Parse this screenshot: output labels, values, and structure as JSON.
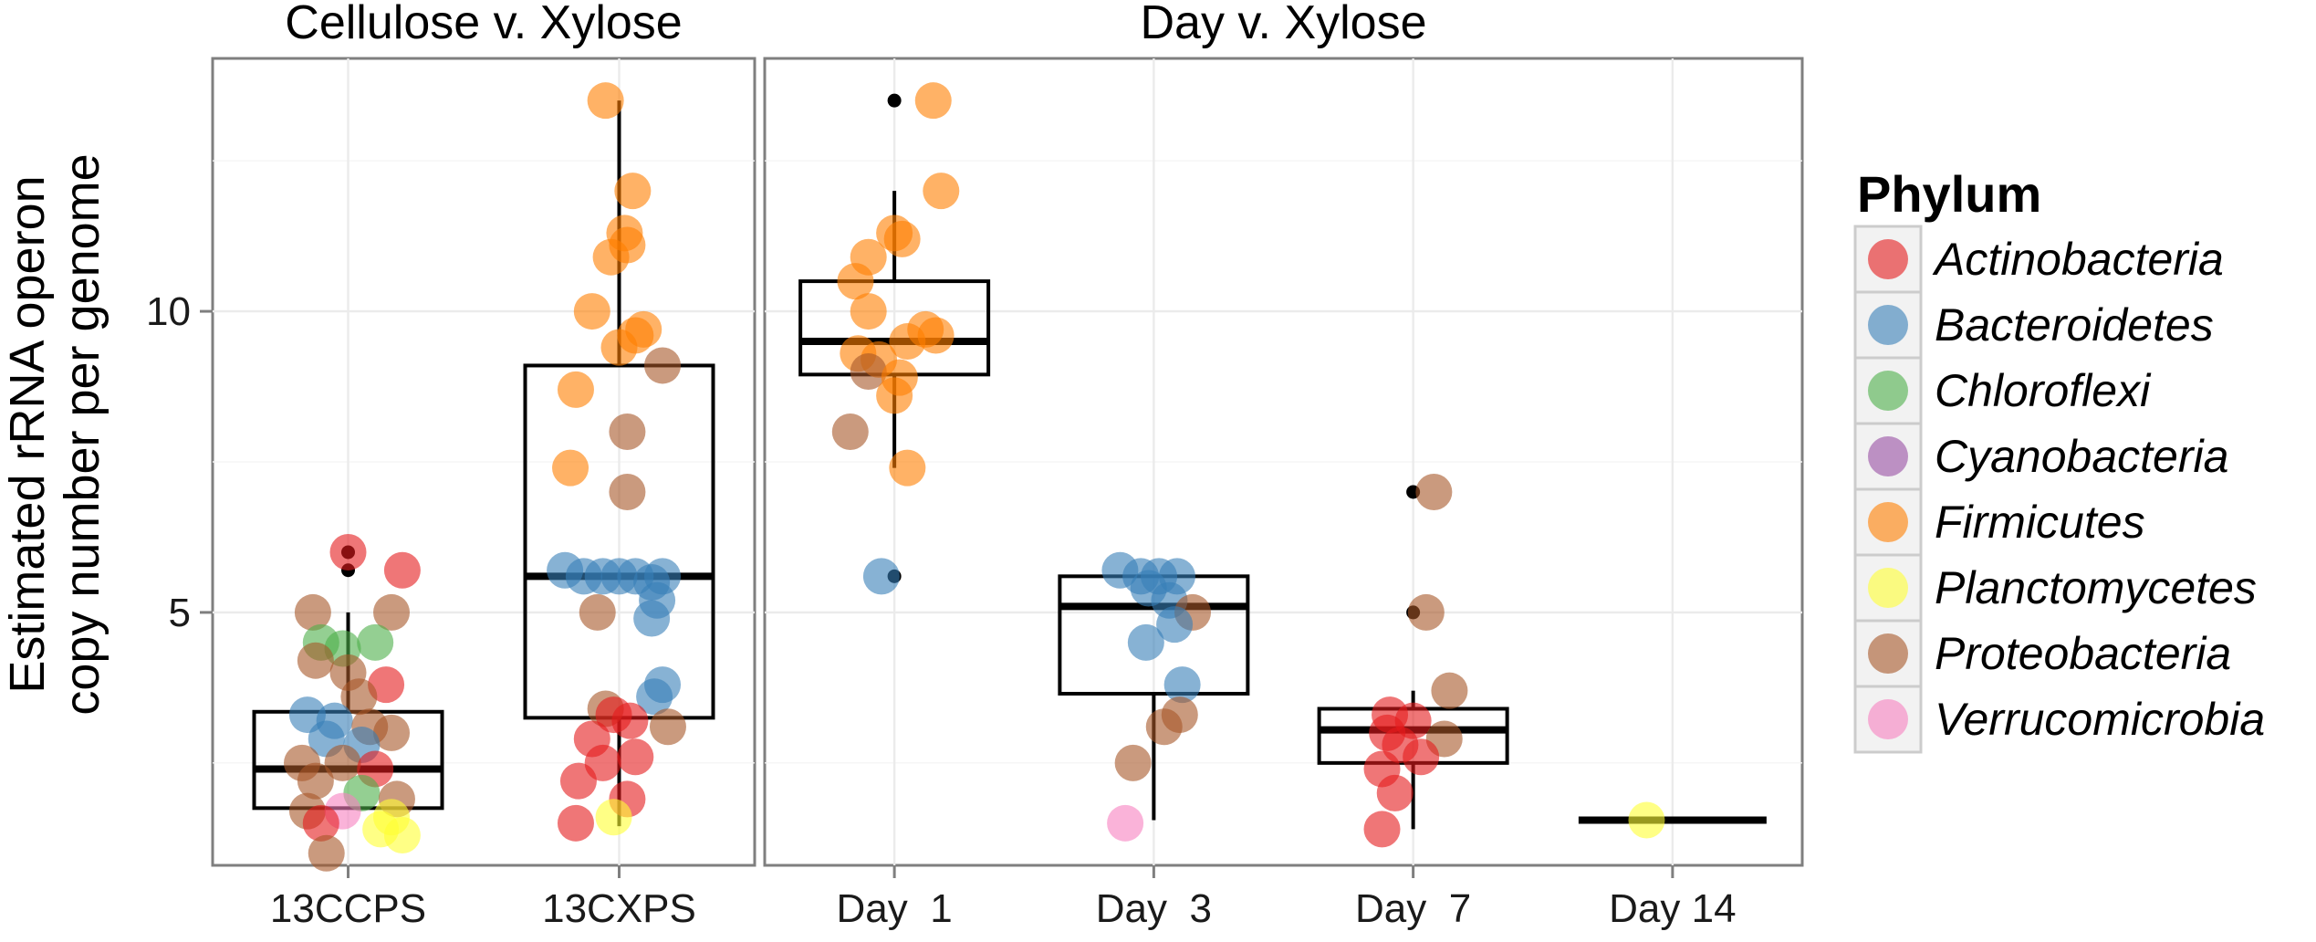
{
  "chart_data": {
    "type": "scatter",
    "subtype": "boxplot with jittered points, faceted",
    "ylabel": [
      "Estimated rRNA operon",
      "copy number per genome"
    ],
    "xlabel": "",
    "ylim": [
      0.8,
      14.2
    ],
    "yticks": [
      5,
      10
    ],
    "grid": true,
    "legend": {
      "title": "Phylum",
      "placement": "right",
      "entries": [
        {
          "name": "Actinobacteria",
          "color": "#e41a1c"
        },
        {
          "name": "Bacteroidetes",
          "color": "#377eb8"
        },
        {
          "name": "Chloroflexi",
          "color": "#4daf4a"
        },
        {
          "name": "Cyanobacteria",
          "color": "#984ea3"
        },
        {
          "name": "Firmicutes",
          "color": "#ff7f00"
        },
        {
          "name": "Planctomycetes",
          "color": "#ffff33"
        },
        {
          "name": "Proteobacteria",
          "color": "#a65628"
        },
        {
          "name": "Verrucomicrobia",
          "color": "#f781bf"
        }
      ]
    },
    "panels": [
      {
        "title": "Cellulose v. Xylose",
        "categories": [
          "13CCPS",
          "13CXPS"
        ],
        "boxes": [
          {
            "category": "13CCPS",
            "q1": 1.75,
            "median": 2.4,
            "q3": 3.35,
            "whisker_low": 1.75,
            "whisker_high": 5.0
          },
          {
            "category": "13CXPS",
            "q1": 3.25,
            "median": 5.6,
            "q3": 9.1,
            "whisker_low": 1.45,
            "whisker_high": 13.5
          }
        ],
        "outliers": [
          {
            "category": "13CCPS",
            "y": 6.0
          },
          {
            "category": "13CCPS",
            "y": 5.7
          }
        ],
        "points": [
          {
            "category": "13CCPS",
            "dx": 0.0,
            "y": 6.0,
            "phylum": "Actinobacteria"
          },
          {
            "category": "13CCPS",
            "dx": 0.2,
            "y": 5.7,
            "phylum": "Actinobacteria"
          },
          {
            "category": "13CCPS",
            "dx": -0.13,
            "y": 5.0,
            "phylum": "Proteobacteria"
          },
          {
            "category": "13CCPS",
            "dx": 0.16,
            "y": 5.0,
            "phylum": "Proteobacteria"
          },
          {
            "category": "13CCPS",
            "dx": -0.1,
            "y": 4.5,
            "phylum": "Chloroflexi"
          },
          {
            "category": "13CCPS",
            "dx": 0.1,
            "y": 4.5,
            "phylum": "Chloroflexi"
          },
          {
            "category": "13CCPS",
            "dx": -0.02,
            "y": 4.4,
            "phylum": "Chloroflexi"
          },
          {
            "category": "13CCPS",
            "dx": -0.12,
            "y": 4.2,
            "phylum": "Proteobacteria"
          },
          {
            "category": "13CCPS",
            "dx": 0.0,
            "y": 4.0,
            "phylum": "Proteobacteria"
          },
          {
            "category": "13CCPS",
            "dx": 0.14,
            "y": 3.8,
            "phylum": "Actinobacteria"
          },
          {
            "category": "13CCPS",
            "dx": 0.04,
            "y": 3.6,
            "phylum": "Proteobacteria"
          },
          {
            "category": "13CCPS",
            "dx": -0.15,
            "y": 3.3,
            "phylum": "Bacteroidetes"
          },
          {
            "category": "13CCPS",
            "dx": -0.05,
            "y": 3.2,
            "phylum": "Bacteroidetes"
          },
          {
            "category": "13CCPS",
            "dx": 0.08,
            "y": 3.1,
            "phylum": "Proteobacteria"
          },
          {
            "category": "13CCPS",
            "dx": 0.16,
            "y": 3.0,
            "phylum": "Proteobacteria"
          },
          {
            "category": "13CCPS",
            "dx": -0.08,
            "y": 2.9,
            "phylum": "Bacteroidetes"
          },
          {
            "category": "13CCPS",
            "dx": 0.05,
            "y": 2.8,
            "phylum": "Bacteroidetes"
          },
          {
            "category": "13CCPS",
            "dx": -0.17,
            "y": 2.5,
            "phylum": "Proteobacteria"
          },
          {
            "category": "13CCPS",
            "dx": -0.02,
            "y": 2.5,
            "phylum": "Proteobacteria"
          },
          {
            "category": "13CCPS",
            "dx": 0.1,
            "y": 2.4,
            "phylum": "Actinobacteria"
          },
          {
            "category": "13CCPS",
            "dx": -0.12,
            "y": 2.2,
            "phylum": "Proteobacteria"
          },
          {
            "category": "13CCPS",
            "dx": 0.05,
            "y": 2.0,
            "phylum": "Chloroflexi"
          },
          {
            "category": "13CCPS",
            "dx": 0.18,
            "y": 1.9,
            "phylum": "Proteobacteria"
          },
          {
            "category": "13CCPS",
            "dx": -0.15,
            "y": 1.7,
            "phylum": "Proteobacteria"
          },
          {
            "category": "13CCPS",
            "dx": -0.02,
            "y": 1.7,
            "phylum": "Verrucomicrobia"
          },
          {
            "category": "13CCPS",
            "dx": 0.16,
            "y": 1.6,
            "phylum": "Planctomycetes"
          },
          {
            "category": "13CCPS",
            "dx": -0.1,
            "y": 1.5,
            "phylum": "Actinobacteria"
          },
          {
            "category": "13CCPS",
            "dx": 0.12,
            "y": 1.4,
            "phylum": "Planctomycetes"
          },
          {
            "category": "13CCPS",
            "dx": 0.2,
            "y": 1.3,
            "phylum": "Planctomycetes"
          },
          {
            "category": "13CCPS",
            "dx": -0.08,
            "y": 1.0,
            "phylum": "Proteobacteria"
          },
          {
            "category": "13CXPS",
            "dx": -0.05,
            "y": 13.5,
            "phylum": "Firmicutes"
          },
          {
            "category": "13CXPS",
            "dx": 0.05,
            "y": 12.0,
            "phylum": "Firmicutes"
          },
          {
            "category": "13CXPS",
            "dx": 0.02,
            "y": 11.3,
            "phylum": "Firmicutes"
          },
          {
            "category": "13CXPS",
            "dx": 0.03,
            "y": 11.1,
            "phylum": "Firmicutes"
          },
          {
            "category": "13CXPS",
            "dx": -0.03,
            "y": 10.9,
            "phylum": "Firmicutes"
          },
          {
            "category": "13CXPS",
            "dx": -0.1,
            "y": 10.0,
            "phylum": "Firmicutes"
          },
          {
            "category": "13CXPS",
            "dx": 0.09,
            "y": 9.7,
            "phylum": "Firmicutes"
          },
          {
            "category": "13CXPS",
            "dx": 0.06,
            "y": 9.6,
            "phylum": "Firmicutes"
          },
          {
            "category": "13CXPS",
            "dx": 0.0,
            "y": 9.4,
            "phylum": "Firmicutes"
          },
          {
            "category": "13CXPS",
            "dx": 0.16,
            "y": 9.1,
            "phylum": "Proteobacteria"
          },
          {
            "category": "13CXPS",
            "dx": -0.16,
            "y": 8.7,
            "phylum": "Firmicutes"
          },
          {
            "category": "13CXPS",
            "dx": 0.03,
            "y": 8.0,
            "phylum": "Proteobacteria"
          },
          {
            "category": "13CXPS",
            "dx": -0.18,
            "y": 7.4,
            "phylum": "Firmicutes"
          },
          {
            "category": "13CXPS",
            "dx": 0.03,
            "y": 7.0,
            "phylum": "Proteobacteria"
          },
          {
            "category": "13CXPS",
            "dx": -0.2,
            "y": 5.7,
            "phylum": "Bacteroidetes"
          },
          {
            "category": "13CXPS",
            "dx": -0.13,
            "y": 5.6,
            "phylum": "Bacteroidetes"
          },
          {
            "category": "13CXPS",
            "dx": -0.06,
            "y": 5.6,
            "phylum": "Bacteroidetes"
          },
          {
            "category": "13CXPS",
            "dx": 0.0,
            "y": 5.6,
            "phylum": "Bacteroidetes"
          },
          {
            "category": "13CXPS",
            "dx": 0.06,
            "y": 5.6,
            "phylum": "Bacteroidetes"
          },
          {
            "category": "13CXPS",
            "dx": 0.12,
            "y": 5.5,
            "phylum": "Bacteroidetes"
          },
          {
            "category": "13CXPS",
            "dx": 0.16,
            "y": 5.6,
            "phylum": "Bacteroidetes"
          },
          {
            "category": "13CXPS",
            "dx": 0.14,
            "y": 5.2,
            "phylum": "Bacteroidetes"
          },
          {
            "category": "13CXPS",
            "dx": 0.12,
            "y": 4.9,
            "phylum": "Bacteroidetes"
          },
          {
            "category": "13CXPS",
            "dx": -0.08,
            "y": 5.0,
            "phylum": "Proteobacteria"
          },
          {
            "category": "13CXPS",
            "dx": 0.16,
            "y": 3.8,
            "phylum": "Bacteroidetes"
          },
          {
            "category": "13CXPS",
            "dx": 0.13,
            "y": 3.6,
            "phylum": "Bacteroidetes"
          },
          {
            "category": "13CXPS",
            "dx": -0.05,
            "y": 3.4,
            "phylum": "Proteobacteria"
          },
          {
            "category": "13CXPS",
            "dx": -0.02,
            "y": 3.3,
            "phylum": "Actinobacteria"
          },
          {
            "category": "13CXPS",
            "dx": 0.04,
            "y": 3.2,
            "phylum": "Actinobacteria"
          },
          {
            "category": "13CXPS",
            "dx": 0.18,
            "y": 3.1,
            "phylum": "Proteobacteria"
          },
          {
            "category": "13CXPS",
            "dx": -0.1,
            "y": 2.9,
            "phylum": "Actinobacteria"
          },
          {
            "category": "13CXPS",
            "dx": 0.06,
            "y": 2.6,
            "phylum": "Actinobacteria"
          },
          {
            "category": "13CXPS",
            "dx": -0.06,
            "y": 2.5,
            "phylum": "Actinobacteria"
          },
          {
            "category": "13CXPS",
            "dx": -0.15,
            "y": 2.2,
            "phylum": "Actinobacteria"
          },
          {
            "category": "13CXPS",
            "dx": 0.03,
            "y": 1.9,
            "phylum": "Actinobacteria"
          },
          {
            "category": "13CXPS",
            "dx": -0.02,
            "y": 1.6,
            "phylum": "Planctomycetes"
          },
          {
            "category": "13CXPS",
            "dx": -0.16,
            "y": 1.5,
            "phylum": "Actinobacteria"
          }
        ]
      },
      {
        "title": "Day v. Xylose",
        "categories": [
          "Day  1",
          "Day  3",
          "Day  7",
          "Day 14"
        ],
        "boxes": [
          {
            "category": "Day  1",
            "q1": 8.95,
            "median": 9.5,
            "q3": 10.5,
            "whisker_low": 7.4,
            "whisker_high": 12.0
          },
          {
            "category": "Day  3",
            "q1": 3.65,
            "median": 5.1,
            "q3": 5.6,
            "whisker_low": 1.55,
            "whisker_high": 5.6
          },
          {
            "category": "Day  7",
            "q1": 2.5,
            "median": 3.05,
            "q3": 3.4,
            "whisker_low": 1.4,
            "whisker_high": 3.7
          },
          {
            "category": "Day 14",
            "q1": 1.55,
            "median": 1.55,
            "q3": 1.55,
            "whisker_low": 1.55,
            "whisker_high": 1.55
          }
        ],
        "outliers": [
          {
            "category": "Day  1",
            "y": 13.5
          },
          {
            "category": "Day  1",
            "y": 5.6
          },
          {
            "category": "Day  7",
            "y": 7.0
          },
          {
            "category": "Day  7",
            "y": 5.0
          }
        ],
        "points": [
          {
            "category": "Day  1",
            "dx": 0.15,
            "y": 13.5,
            "phylum": "Firmicutes"
          },
          {
            "category": "Day  1",
            "dx": 0.18,
            "y": 12.0,
            "phylum": "Firmicutes"
          },
          {
            "category": "Day  1",
            "dx": 0.0,
            "y": 11.3,
            "phylum": "Firmicutes"
          },
          {
            "category": "Day  1",
            "dx": 0.03,
            "y": 11.2,
            "phylum": "Firmicutes"
          },
          {
            "category": "Day  1",
            "dx": -0.1,
            "y": 10.9,
            "phylum": "Firmicutes"
          },
          {
            "category": "Day  1",
            "dx": -0.15,
            "y": 10.5,
            "phylum": "Firmicutes"
          },
          {
            "category": "Day  1",
            "dx": -0.1,
            "y": 10.0,
            "phylum": "Firmicutes"
          },
          {
            "category": "Day  1",
            "dx": 0.12,
            "y": 9.7,
            "phylum": "Firmicutes"
          },
          {
            "category": "Day  1",
            "dx": 0.16,
            "y": 9.6,
            "phylum": "Firmicutes"
          },
          {
            "category": "Day  1",
            "dx": 0.05,
            "y": 9.5,
            "phylum": "Firmicutes"
          },
          {
            "category": "Day  1",
            "dx": -0.14,
            "y": 9.3,
            "phylum": "Firmicutes"
          },
          {
            "category": "Day  1",
            "dx": -0.06,
            "y": 9.2,
            "phylum": "Firmicutes"
          },
          {
            "category": "Day  1",
            "dx": -0.1,
            "y": 9.0,
            "phylum": "Proteobacteria"
          },
          {
            "category": "Day  1",
            "dx": 0.02,
            "y": 8.9,
            "phylum": "Firmicutes"
          },
          {
            "category": "Day  1",
            "dx": 0.0,
            "y": 8.6,
            "phylum": "Firmicutes"
          },
          {
            "category": "Day  1",
            "dx": -0.17,
            "y": 8.0,
            "phylum": "Proteobacteria"
          },
          {
            "category": "Day  1",
            "dx": 0.05,
            "y": 7.4,
            "phylum": "Firmicutes"
          },
          {
            "category": "Day  1",
            "dx": -0.05,
            "y": 5.6,
            "phylum": "Bacteroidetes"
          },
          {
            "category": "Day  3",
            "dx": -0.13,
            "y": 5.7,
            "phylum": "Bacteroidetes"
          },
          {
            "category": "Day  3",
            "dx": -0.05,
            "y": 5.6,
            "phylum": "Bacteroidetes"
          },
          {
            "category": "Day  3",
            "dx": 0.02,
            "y": 5.6,
            "phylum": "Bacteroidetes"
          },
          {
            "category": "Day  3",
            "dx": 0.09,
            "y": 5.6,
            "phylum": "Bacteroidetes"
          },
          {
            "category": "Day  3",
            "dx": -0.02,
            "y": 5.4,
            "phylum": "Bacteroidetes"
          },
          {
            "category": "Day  3",
            "dx": 0.06,
            "y": 5.2,
            "phylum": "Bacteroidetes"
          },
          {
            "category": "Day  3",
            "dx": 0.15,
            "y": 5.0,
            "phylum": "Proteobacteria"
          },
          {
            "category": "Day  3",
            "dx": 0.08,
            "y": 4.8,
            "phylum": "Bacteroidetes"
          },
          {
            "category": "Day  3",
            "dx": -0.03,
            "y": 4.5,
            "phylum": "Bacteroidetes"
          },
          {
            "category": "Day  3",
            "dx": 0.11,
            "y": 3.8,
            "phylum": "Bacteroidetes"
          },
          {
            "category": "Day  3",
            "dx": 0.1,
            "y": 3.3,
            "phylum": "Proteobacteria"
          },
          {
            "category": "Day  3",
            "dx": 0.04,
            "y": 3.1,
            "phylum": "Proteobacteria"
          },
          {
            "category": "Day  3",
            "dx": -0.08,
            "y": 2.5,
            "phylum": "Proteobacteria"
          },
          {
            "category": "Day  3",
            "dx": -0.11,
            "y": 1.5,
            "phylum": "Verrucomicrobia"
          },
          {
            "category": "Day  7",
            "dx": 0.08,
            "y": 7.0,
            "phylum": "Proteobacteria"
          },
          {
            "category": "Day  7",
            "dx": 0.05,
            "y": 5.0,
            "phylum": "Proteobacteria"
          },
          {
            "category": "Day  7",
            "dx": 0.14,
            "y": 3.7,
            "phylum": "Proteobacteria"
          },
          {
            "category": "Day  7",
            "dx": -0.09,
            "y": 3.3,
            "phylum": "Actinobacteria"
          },
          {
            "category": "Day  7",
            "dx": 0.0,
            "y": 3.2,
            "phylum": "Actinobacteria"
          },
          {
            "category": "Day  7",
            "dx": -0.1,
            "y": 3.0,
            "phylum": "Actinobacteria"
          },
          {
            "category": "Day  7",
            "dx": 0.12,
            "y": 2.9,
            "phylum": "Proteobacteria"
          },
          {
            "category": "Day  7",
            "dx": -0.05,
            "y": 2.8,
            "phylum": "Actinobacteria"
          },
          {
            "category": "Day  7",
            "dx": 0.03,
            "y": 2.6,
            "phylum": "Actinobacteria"
          },
          {
            "category": "Day  7",
            "dx": -0.12,
            "y": 2.4,
            "phylum": "Actinobacteria"
          },
          {
            "category": "Day  7",
            "dx": -0.07,
            "y": 2.0,
            "phylum": "Actinobacteria"
          },
          {
            "category": "Day  7",
            "dx": -0.12,
            "y": 1.4,
            "phylum": "Actinobacteria"
          },
          {
            "category": "Day 14",
            "dx": -0.1,
            "y": 1.55,
            "phylum": "Planctomycetes"
          }
        ]
      }
    ]
  }
}
